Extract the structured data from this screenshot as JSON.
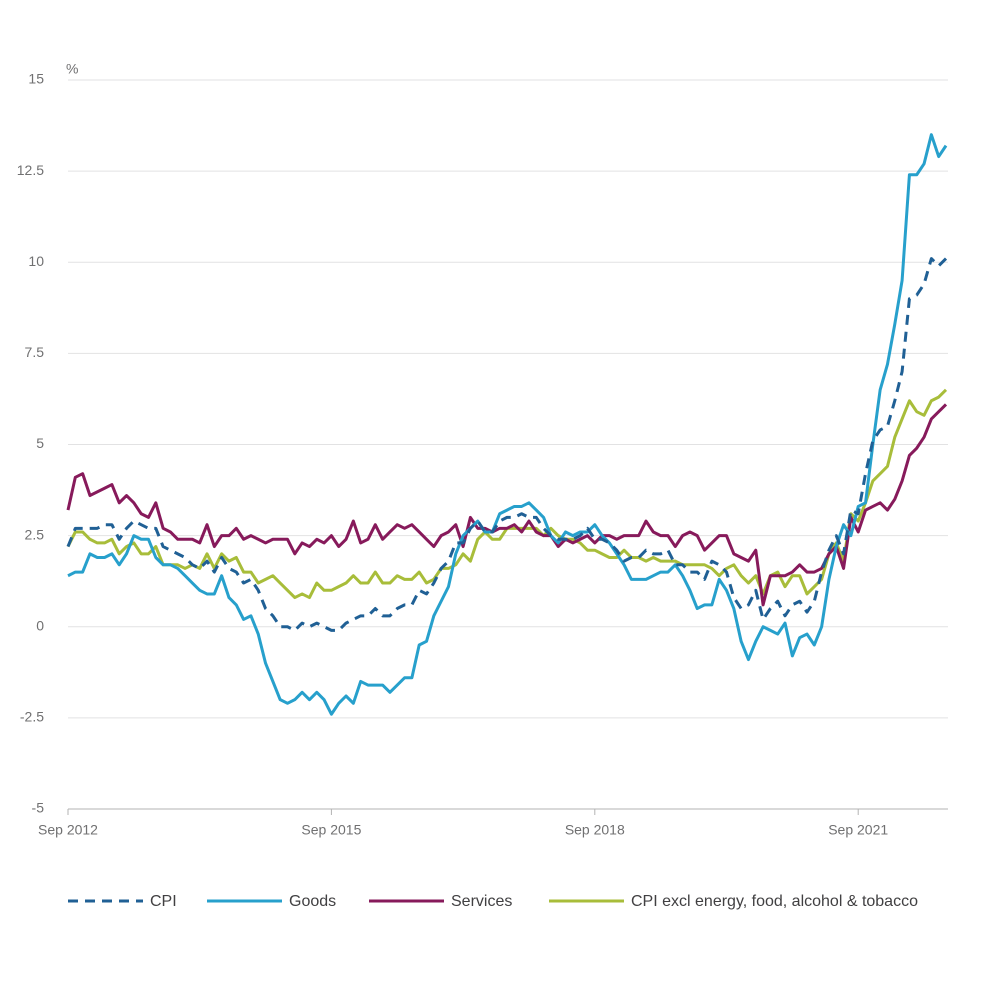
{
  "chart_data": {
    "type": "line",
    "y_label": "%",
    "categories": [
      "Sep 2012",
      null,
      null,
      null,
      null,
      null,
      null,
      null,
      null,
      null,
      null,
      null,
      null,
      null,
      null,
      null,
      null,
      null,
      null,
      null,
      null,
      null,
      null,
      null,
      null,
      null,
      null,
      null,
      null,
      null,
      null,
      null,
      null,
      null,
      null,
      null,
      "Sep 2015",
      null,
      null,
      null,
      null,
      null,
      null,
      null,
      null,
      null,
      null,
      null,
      null,
      null,
      null,
      null,
      null,
      null,
      null,
      null,
      null,
      null,
      null,
      null,
      null,
      null,
      null,
      null,
      null,
      null,
      null,
      null,
      null,
      null,
      null,
      null,
      "Sep 2018",
      null,
      null,
      null,
      null,
      null,
      null,
      null,
      null,
      null,
      null,
      null,
      null,
      null,
      null,
      null,
      null,
      null,
      null,
      null,
      null,
      null,
      null,
      null,
      null,
      null,
      null,
      null,
      null,
      null,
      null,
      null,
      null,
      null,
      null,
      null,
      "Sep 2021",
      null,
      null,
      null,
      null,
      null,
      null,
      null,
      null,
      null,
      null,
      null,
      null
    ],
    "ylim": [
      -5,
      15
    ],
    "yticks": [
      -5,
      -2.5,
      0,
      2.5,
      5,
      7.5,
      10,
      12.5,
      15
    ],
    "grid": true,
    "legend": "bottom",
    "series": [
      {
        "name": "CPI",
        "color": "#206095",
        "dashed": true,
        "values": [
          2.2,
          2.7,
          2.7,
          2.7,
          2.7,
          2.8,
          2.8,
          2.4,
          2.7,
          2.9,
          2.8,
          2.7,
          2.7,
          2.2,
          2.1,
          2.0,
          1.9,
          1.7,
          1.6,
          1.8,
          1.5,
          1.9,
          1.6,
          1.5,
          1.2,
          1.3,
          1.0,
          0.5,
          0.3,
          0.0,
          0.0,
          -0.1,
          0.1,
          0.0,
          0.1,
          0.0,
          -0.1,
          -0.1,
          0.1,
          0.2,
          0.3,
          0.3,
          0.5,
          0.3,
          0.3,
          0.5,
          0.6,
          0.6,
          1.0,
          0.9,
          1.2,
          1.6,
          1.8,
          2.3,
          2.3,
          2.7,
          2.9,
          2.6,
          2.6,
          2.9,
          3.0,
          3.0,
          3.1,
          3.0,
          3.0,
          2.7,
          2.5,
          2.4,
          2.4,
          2.4,
          2.5,
          2.7,
          2.4,
          2.4,
          2.3,
          2.1,
          1.8,
          1.9,
          1.9,
          2.1,
          2.0,
          2.0,
          2.1,
          1.7,
          1.7,
          1.5,
          1.5,
          1.3,
          1.8,
          1.7,
          1.5,
          0.8,
          0.5,
          0.6,
          1.0,
          0.2,
          0.5,
          0.7,
          0.3,
          0.6,
          0.7,
          0.4,
          0.7,
          1.5,
          2.1,
          2.5,
          2.0,
          3.2,
          3.1,
          4.2,
          5.1,
          5.4,
          5.5,
          6.2,
          7.0,
          9.0,
          9.1,
          9.4,
          10.1,
          9.9,
          10.1
        ]
      },
      {
        "name": "Goods",
        "color": "#27a0cc",
        "values": [
          1.4,
          1.5,
          1.5,
          2.0,
          1.9,
          1.9,
          2.0,
          1.7,
          2.0,
          2.5,
          2.4,
          2.4,
          1.9,
          1.7,
          1.7,
          1.6,
          1.4,
          1.2,
          1.0,
          0.9,
          0.9,
          1.4,
          0.8,
          0.6,
          0.2,
          0.3,
          -0.2,
          -1.0,
          -1.5,
          -2.0,
          -2.1,
          -2.0,
          -1.8,
          -2.0,
          -1.8,
          -2.0,
          -2.4,
          -2.1,
          -1.9,
          -2.1,
          -1.5,
          -1.6,
          -1.6,
          -1.6,
          -1.8,
          -1.6,
          -1.4,
          -1.4,
          -0.5,
          -0.4,
          0.3,
          0.7,
          1.1,
          2.0,
          2.5,
          2.7,
          2.9,
          2.6,
          2.6,
          3.1,
          3.2,
          3.3,
          3.3,
          3.4,
          3.2,
          3.0,
          2.5,
          2.3,
          2.6,
          2.5,
          2.6,
          2.6,
          2.8,
          2.5,
          2.3,
          2.0,
          1.7,
          1.3,
          1.3,
          1.3,
          1.4,
          1.5,
          1.5,
          1.7,
          1.4,
          1.0,
          0.5,
          0.6,
          0.6,
          1.3,
          1.0,
          0.5,
          -0.4,
          -0.9,
          -0.4,
          0.0,
          -0.1,
          -0.2,
          0.1,
          -0.8,
          -0.3,
          -0.2,
          -0.5,
          0.0,
          1.3,
          2.2,
          2.8,
          2.5,
          3.3,
          3.4,
          5.0,
          6.5,
          7.2,
          8.3,
          9.5,
          12.4,
          12.4,
          12.7,
          13.5,
          12.9,
          13.2
        ]
      },
      {
        "name": "Services",
        "color": "#871a5b",
        "values": [
          3.2,
          4.1,
          4.2,
          3.6,
          3.7,
          3.8,
          3.9,
          3.4,
          3.6,
          3.4,
          3.1,
          3.0,
          3.4,
          2.7,
          2.6,
          2.4,
          2.4,
          2.4,
          2.3,
          2.8,
          2.2,
          2.5,
          2.5,
          2.7,
          2.4,
          2.5,
          2.4,
          2.3,
          2.4,
          2.4,
          2.4,
          2.0,
          2.3,
          2.2,
          2.4,
          2.3,
          2.5,
          2.2,
          2.4,
          2.9,
          2.3,
          2.4,
          2.8,
          2.4,
          2.6,
          2.8,
          2.7,
          2.8,
          2.6,
          2.4,
          2.2,
          2.5,
          2.6,
          2.8,
          2.2,
          3.0,
          2.7,
          2.7,
          2.6,
          2.7,
          2.7,
          2.8,
          2.6,
          2.9,
          2.6,
          2.5,
          2.5,
          2.2,
          2.4,
          2.3,
          2.4,
          2.5,
          2.3,
          2.5,
          2.5,
          2.4,
          2.5,
          2.5,
          2.5,
          2.9,
          2.6,
          2.5,
          2.5,
          2.2,
          2.5,
          2.6,
          2.5,
          2.1,
          2.3,
          2.5,
          2.5,
          2.0,
          1.9,
          1.8,
          2.1,
          0.6,
          1.4,
          1.4,
          1.4,
          1.5,
          1.7,
          1.5,
          1.5,
          1.6,
          2.0,
          2.2,
          1.6,
          3.0,
          2.6,
          3.2,
          3.3,
          3.4,
          3.2,
          3.5,
          4.0,
          4.7,
          4.9,
          5.2,
          5.7,
          5.9,
          6.1
        ]
      },
      {
        "name": "CPI excl energy, food, alcohol & tobacco",
        "color": "#a8bd3a",
        "values": [
          2.2,
          2.6,
          2.6,
          2.4,
          2.3,
          2.3,
          2.4,
          2.0,
          2.2,
          2.3,
          2.0,
          2.0,
          2.2,
          1.7,
          1.7,
          1.7,
          1.6,
          1.7,
          1.6,
          2.0,
          1.6,
          2.0,
          1.8,
          1.9,
          1.5,
          1.5,
          1.2,
          1.3,
          1.4,
          1.2,
          1.0,
          0.8,
          0.9,
          0.8,
          1.2,
          1.0,
          1.0,
          1.1,
          1.2,
          1.4,
          1.2,
          1.2,
          1.5,
          1.2,
          1.2,
          1.4,
          1.3,
          1.3,
          1.5,
          1.2,
          1.3,
          1.6,
          1.6,
          1.7,
          2.0,
          1.8,
          2.4,
          2.6,
          2.4,
          2.4,
          2.7,
          2.7,
          2.7,
          2.7,
          2.7,
          2.5,
          2.7,
          2.5,
          2.4,
          2.4,
          2.3,
          2.1,
          2.1,
          2.0,
          1.9,
          1.9,
          2.1,
          1.9,
          1.9,
          1.8,
          1.9,
          1.8,
          1.8,
          1.8,
          1.7,
          1.7,
          1.7,
          1.7,
          1.6,
          1.4,
          1.6,
          1.7,
          1.4,
          1.2,
          1.4,
          0.9,
          1.4,
          1.5,
          1.1,
          1.4,
          1.4,
          0.9,
          1.1,
          1.3,
          2.0,
          2.3,
          1.8,
          3.1,
          2.9,
          3.4,
          4.0,
          4.2,
          4.4,
          5.2,
          5.7,
          6.2,
          5.9,
          5.8,
          6.2,
          6.3,
          6.5
        ]
      }
    ]
  }
}
